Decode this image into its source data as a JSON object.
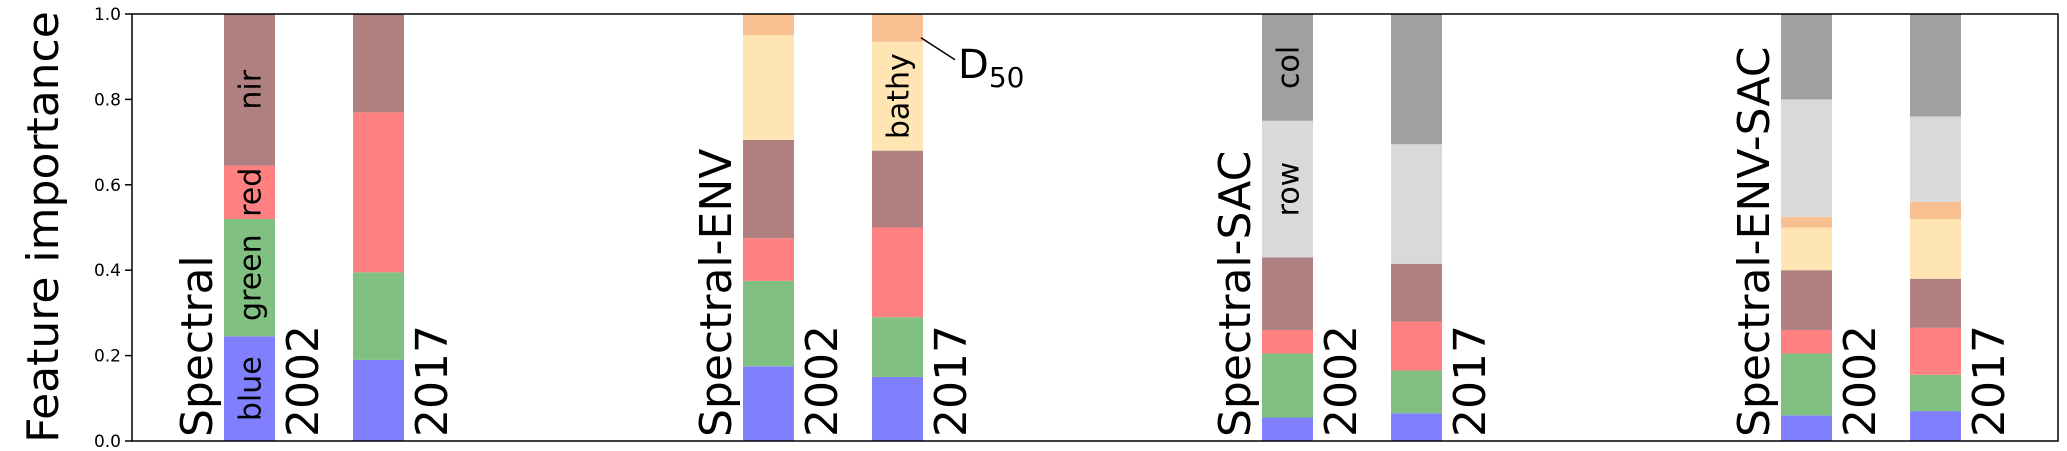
{
  "chart_data": {
    "type": "bar",
    "stacked": true,
    "ylabel": "Feature importance",
    "ylim": [
      0,
      1
    ],
    "yticks": [
      "0.0",
      "0.2",
      "0.4",
      "0.6",
      "0.8",
      "1.0"
    ],
    "grid": false,
    "colors": {
      "blue": "#8080ff",
      "green": "#80c080",
      "red": "#ff8080",
      "nir": "#b08080",
      "bathy": "#ffe5b4",
      "d50": "#f8c090",
      "row": "#d9d9d9",
      "col": "#a0a0a0"
    },
    "groups": [
      {
        "label": "Spectral",
        "bars": [
          {
            "year": "2002",
            "segments": [
              {
                "feature": "blue",
                "value": 0.245
              },
              {
                "feature": "green",
                "value": 0.275
              },
              {
                "feature": "red",
                "value": 0.125
              },
              {
                "feature": "nir",
                "value": 0.355
              }
            ]
          },
          {
            "year": "2017",
            "segments": [
              {
                "feature": "blue",
                "value": 0.19
              },
              {
                "feature": "green",
                "value": 0.205
              },
              {
                "feature": "red",
                "value": 0.375
              },
              {
                "feature": "nir",
                "value": 0.23
              }
            ]
          }
        ]
      },
      {
        "label": "Spectral-ENV",
        "bars": [
          {
            "year": "2002",
            "segments": [
              {
                "feature": "blue",
                "value": 0.175
              },
              {
                "feature": "green",
                "value": 0.2
              },
              {
                "feature": "red",
                "value": 0.1
              },
              {
                "feature": "nir",
                "value": 0.23
              },
              {
                "feature": "bathy",
                "value": 0.245
              },
              {
                "feature": "d50",
                "value": 0.05
              }
            ]
          },
          {
            "year": "2017",
            "segments": [
              {
                "feature": "blue",
                "value": 0.15
              },
              {
                "feature": "green",
                "value": 0.14
              },
              {
                "feature": "red",
                "value": 0.21
              },
              {
                "feature": "nir",
                "value": 0.18
              },
              {
                "feature": "bathy",
                "value": 0.255
              },
              {
                "feature": "d50",
                "value": 0.065
              }
            ]
          }
        ]
      },
      {
        "label": "Spectral-SAC",
        "bars": [
          {
            "year": "2002",
            "segments": [
              {
                "feature": "blue",
                "value": 0.055
              },
              {
                "feature": "green",
                "value": 0.15
              },
              {
                "feature": "red",
                "value": 0.055
              },
              {
                "feature": "nir",
                "value": 0.17
              },
              {
                "feature": "row",
                "value": 0.32
              },
              {
                "feature": "col",
                "value": 0.25
              }
            ]
          },
          {
            "year": "2017",
            "segments": [
              {
                "feature": "blue",
                "value": 0.065
              },
              {
                "feature": "green",
                "value": 0.1
              },
              {
                "feature": "red",
                "value": 0.115
              },
              {
                "feature": "nir",
                "value": 0.135
              },
              {
                "feature": "row",
                "value": 0.28
              },
              {
                "feature": "col",
                "value": 0.305
              }
            ]
          }
        ]
      },
      {
        "label": "Spectral-ENV-SAC",
        "bars": [
          {
            "year": "2002",
            "segments": [
              {
                "feature": "blue",
                "value": 0.06
              },
              {
                "feature": "green",
                "value": 0.145
              },
              {
                "feature": "red",
                "value": 0.055
              },
              {
                "feature": "nir",
                "value": 0.14
              },
              {
                "feature": "bathy",
                "value": 0.1
              },
              {
                "feature": "d50",
                "value": 0.025
              },
              {
                "feature": "row",
                "value": 0.275
              },
              {
                "feature": "col",
                "value": 0.2
              }
            ]
          },
          {
            "year": "2017",
            "segments": [
              {
                "feature": "blue",
                "value": 0.07
              },
              {
                "feature": "green",
                "value": 0.085
              },
              {
                "feature": "red",
                "value": 0.11
              },
              {
                "feature": "nir",
                "value": 0.115
              },
              {
                "feature": "bathy",
                "value": 0.14
              },
              {
                "feature": "d50",
                "value": 0.04
              },
              {
                "feature": "row",
                "value": 0.2
              },
              {
                "feature": "col",
                "value": 0.24
              }
            ]
          }
        ]
      }
    ],
    "annotations": [
      {
        "text": "blue",
        "group": 0,
        "bar": 0,
        "feature": "blue"
      },
      {
        "text": "green",
        "group": 0,
        "bar": 0,
        "feature": "green"
      },
      {
        "text": "red",
        "group": 0,
        "bar": 0,
        "feature": "red"
      },
      {
        "text": "nir",
        "group": 0,
        "bar": 0,
        "feature": "nir"
      },
      {
        "text": "bathy",
        "group": 1,
        "bar": 1,
        "feature": "bathy"
      },
      {
        "text": "row",
        "group": 2,
        "bar": 0,
        "feature": "row"
      },
      {
        "text": "col",
        "group": 2,
        "bar": 0,
        "feature": "col"
      }
    ],
    "d50_label": {
      "main": "D",
      "sub": "50",
      "group": 1,
      "bar": 1,
      "feature": "d50"
    }
  }
}
